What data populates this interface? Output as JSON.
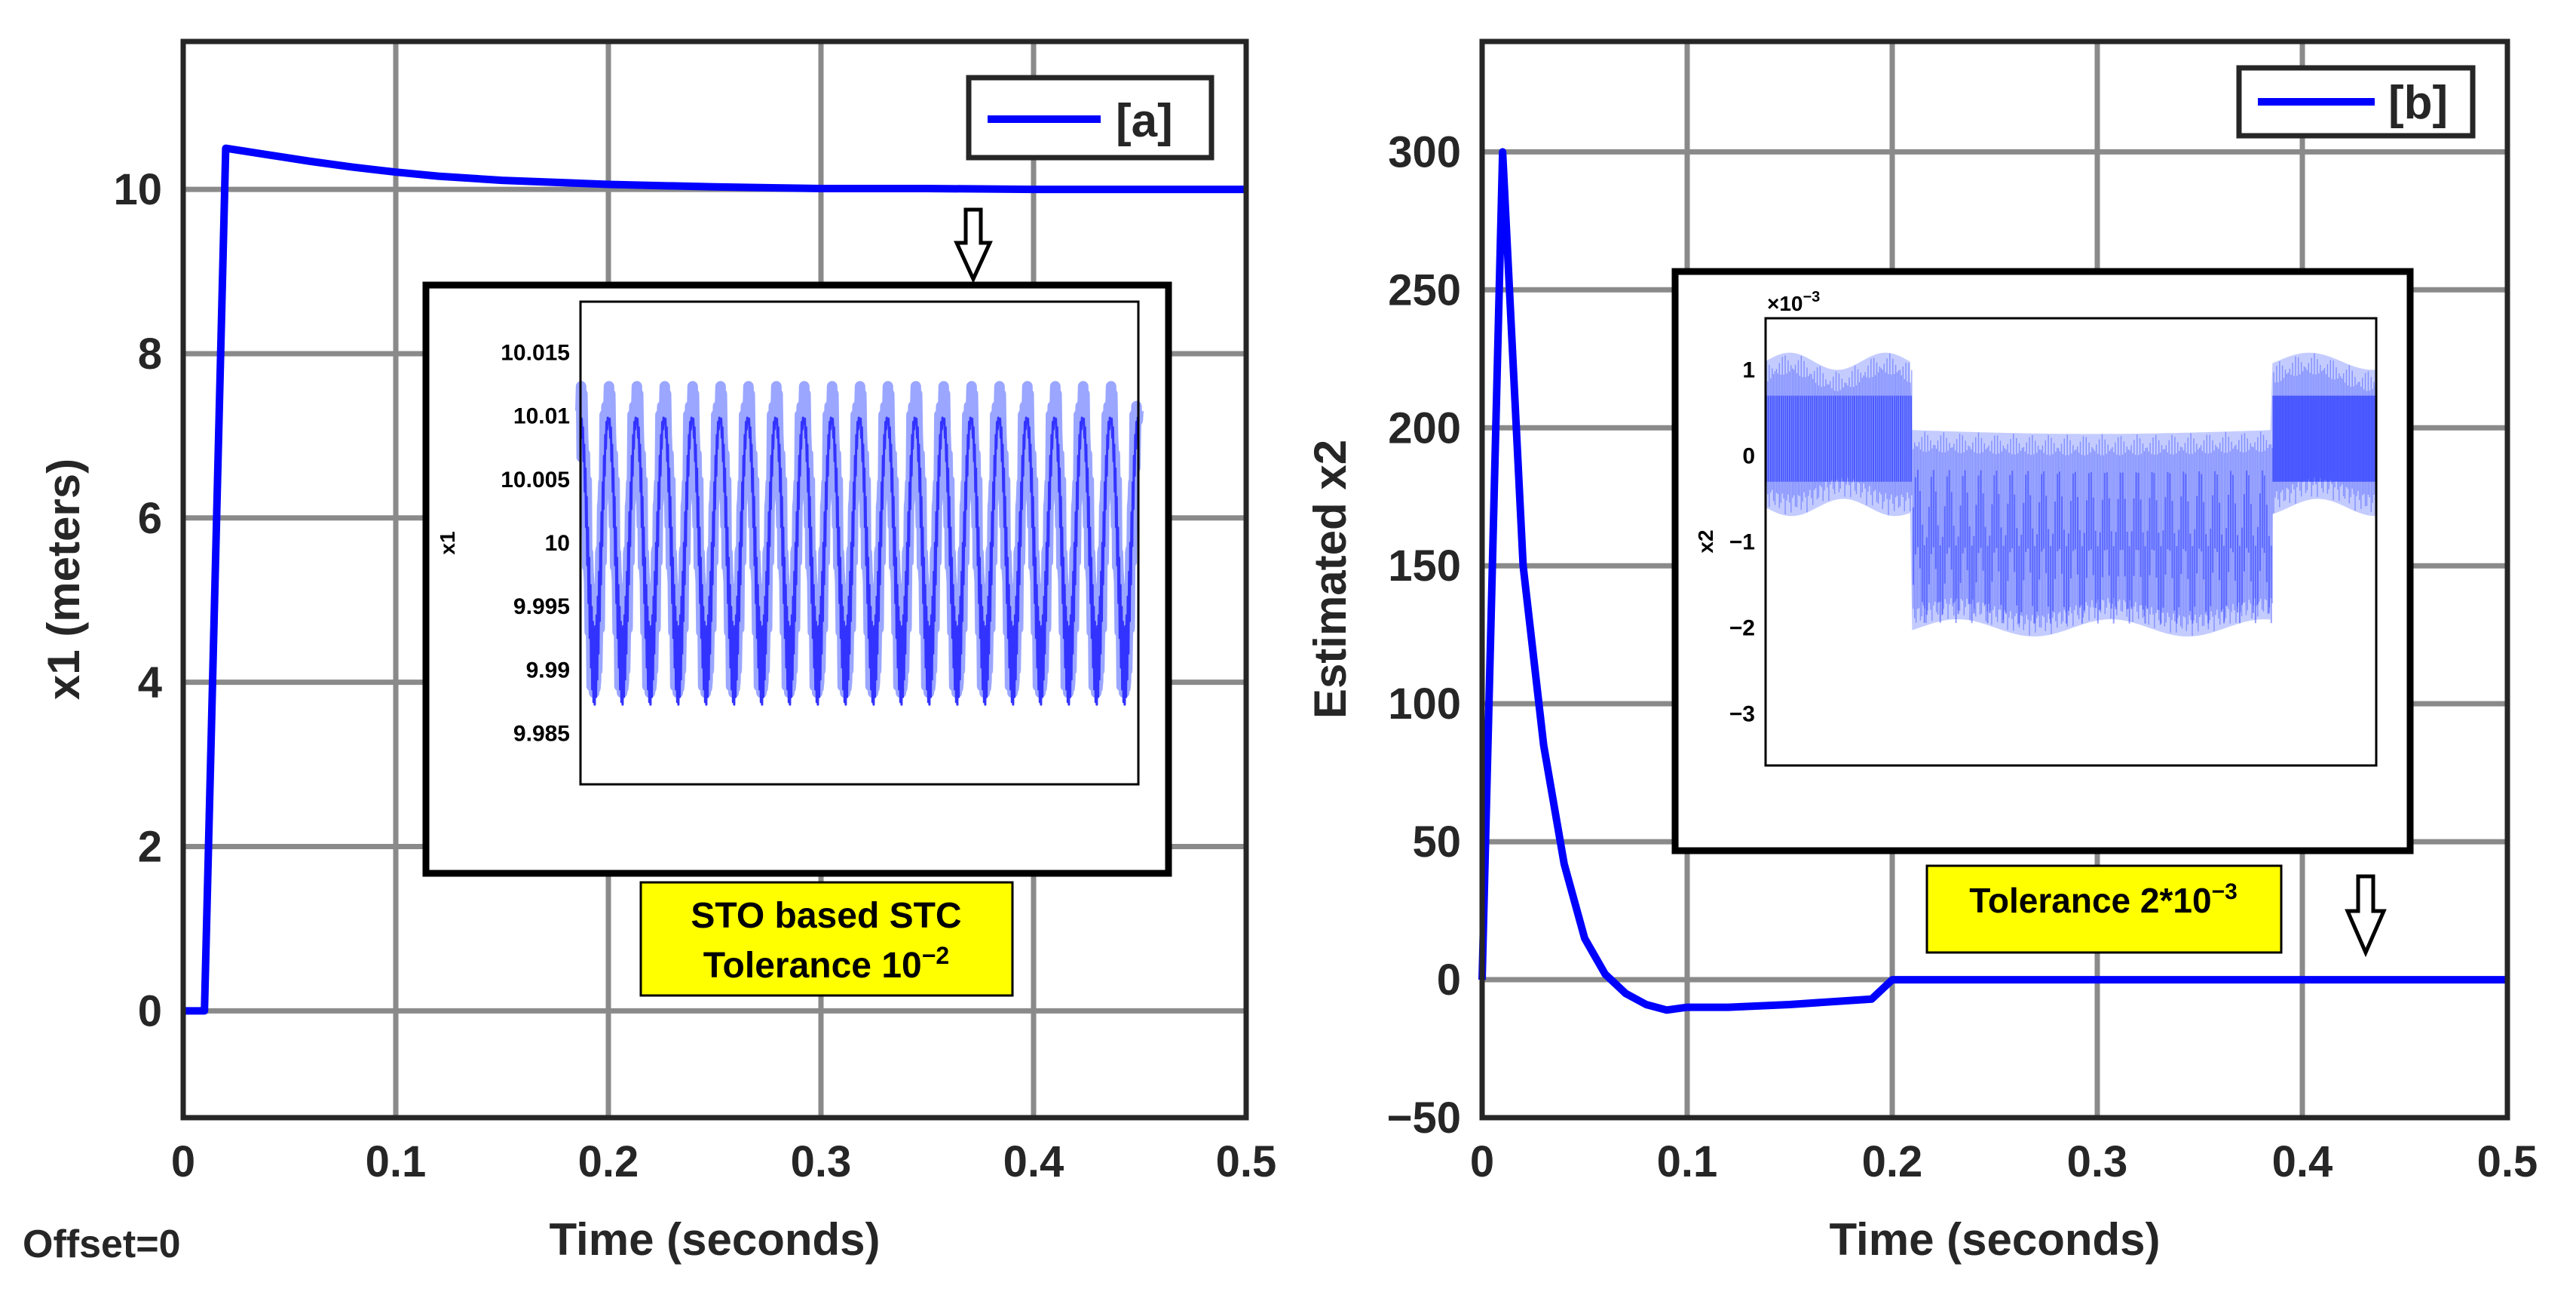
{
  "offset_label": "Offset=0",
  "chart_data": [
    {
      "id": "a",
      "type": "line",
      "xlabel": "Time (seconds)",
      "ylabel": "x1 (meters)",
      "xlim": [
        0,
        0.5
      ],
      "ylim": [
        -1.3,
        11.8
      ],
      "xticks": [
        0,
        0.1,
        0.2,
        0.3,
        0.4,
        0.5
      ],
      "xtick_labels": [
        "0",
        "0.1",
        "0.2",
        "0.3",
        "0.4",
        "0.5"
      ],
      "yticks": [
        0,
        2,
        4,
        6,
        8,
        10
      ],
      "ytick_labels": [
        "0",
        "2",
        "4",
        "6",
        "8",
        "10"
      ],
      "grid": true,
      "legend": "[a]",
      "legend_position": "top-right",
      "series": [
        {
          "name": "[a]",
          "color": "#0000ff",
          "x": [
            0,
            0.01,
            0.02,
            0.04,
            0.06,
            0.08,
            0.1,
            0.12,
            0.15,
            0.2,
            0.25,
            0.3,
            0.35,
            0.4,
            0.45,
            0.5
          ],
          "y": [
            0,
            0,
            10.5,
            10.42,
            10.34,
            10.27,
            10.21,
            10.16,
            10.11,
            10.06,
            10.03,
            10.01,
            10.01,
            10.0,
            10.0,
            10.0
          ]
        }
      ],
      "inset": {
        "ylabel": "x1",
        "ylim": [
          9.981,
          10.019
        ],
        "yticks": [
          9.985,
          9.99,
          9.995,
          10,
          10.005,
          10.01,
          10.015
        ],
        "ytick_labels": [
          "9.985",
          "9.99",
          "9.995",
          "10",
          "10.005",
          "10.01",
          "10.015"
        ],
        "center": 10,
        "amplitude": 0.013,
        "cycles": 20
      },
      "annotation": {
        "line1": "STO based STC",
        "line2_prefix": "Tolerance 10",
        "line2_exp": "−2"
      }
    },
    {
      "id": "b",
      "type": "line",
      "xlabel": "Time (seconds)",
      "ylabel": "Estimated x2",
      "xlim": [
        0,
        0.5
      ],
      "ylim": [
        -50,
        340
      ],
      "xticks": [
        0,
        0.1,
        0.2,
        0.3,
        0.4,
        0.5
      ],
      "xtick_labels": [
        "0",
        "0.1",
        "0.2",
        "0.3",
        "0.4",
        "0.5"
      ],
      "yticks": [
        -50,
        0,
        50,
        100,
        150,
        200,
        250,
        300
      ],
      "ytick_labels": [
        "−50",
        "0",
        "50",
        "100",
        "150",
        "200",
        "250",
        "300"
      ],
      "grid": true,
      "legend": "[b]",
      "legend_position": "top-right",
      "series": [
        {
          "name": "[b]",
          "color": "#0000ff",
          "x": [
            0,
            0.01,
            0.02,
            0.03,
            0.04,
            0.05,
            0.06,
            0.07,
            0.08,
            0.09,
            0.1,
            0.12,
            0.15,
            0.19,
            0.2,
            0.3,
            0.4,
            0.5
          ],
          "y": [
            0,
            300,
            150,
            85,
            42,
            15,
            2,
            -5,
            -9,
            -11,
            -10,
            -10,
            -9,
            -7,
            0,
            0,
            0,
            0
          ]
        }
      ],
      "inset": {
        "ylabel": "x2",
        "exponent_label": "×10",
        "exponent_power": "−3",
        "ylim": [
          -3.6,
          1.6
        ],
        "yticks": [
          -3,
          -2,
          -1,
          0,
          1
        ],
        "ytick_labels": [
          "−3",
          "−2",
          "−1",
          "0",
          "1"
        ]
      },
      "annotation": {
        "line1_prefix": "Tolerance 2*10",
        "line1_exp": "−3"
      }
    }
  ]
}
